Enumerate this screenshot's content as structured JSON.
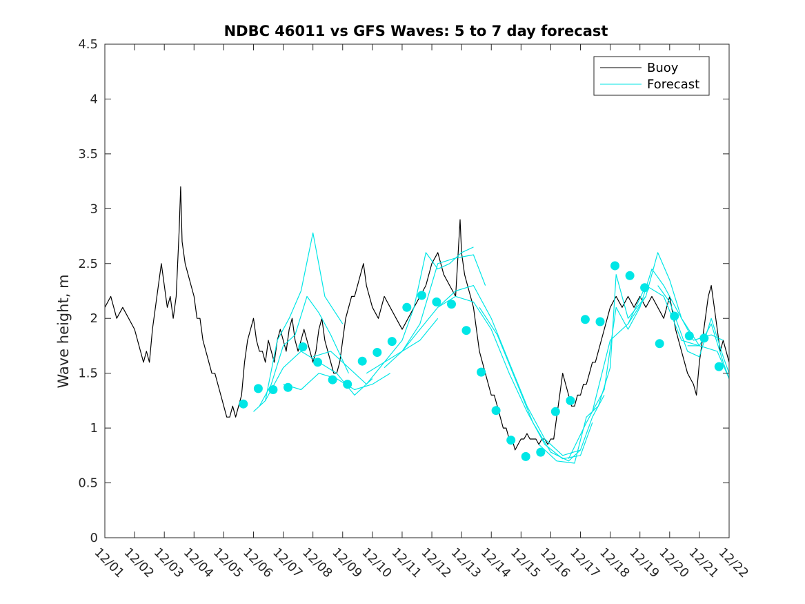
{
  "chart_data": {
    "type": "line",
    "title": "NDBC 46011 vs GFS Waves: 5 to 7 day forecast",
    "xlabel": "",
    "ylabel": "Wave height, m",
    "x_tick_labels": [
      "12/01",
      "12/02",
      "12/03",
      "12/04",
      "12/05",
      "12/06",
      "12/07",
      "12/08",
      "12/09",
      "12/10",
      "12/11",
      "12/12",
      "12/13",
      "12/14",
      "12/15",
      "12/16",
      "12/17",
      "12/18",
      "12/19",
      "12/20",
      "12/21",
      "12/22"
    ],
    "xlim": [
      0,
      21
    ],
    "ylim": [
      0,
      4.5
    ],
    "y_ticks": [
      0,
      0.5,
      1,
      1.5,
      2,
      2.5,
      3,
      3.5,
      4,
      4.5
    ],
    "grid": false,
    "legend_position": "top-right",
    "colors": {
      "buoy": "#000000",
      "forecast": "#00e6e6"
    },
    "series": [
      {
        "name": "Buoy",
        "style": "line",
        "x": [
          0,
          0.2,
          0.4,
          0.6,
          0.8,
          1.0,
          1.1,
          1.2,
          1.3,
          1.4,
          1.5,
          1.6,
          1.7,
          1.8,
          1.9,
          2.0,
          2.1,
          2.2,
          2.3,
          2.4,
          2.5,
          2.55,
          2.6,
          2.7,
          2.8,
          2.9,
          3.0,
          3.1,
          3.2,
          3.3,
          3.4,
          3.5,
          3.6,
          3.7,
          3.8,
          3.9,
          4.0,
          4.1,
          4.2,
          4.3,
          4.4,
          4.5,
          4.6,
          4.7,
          4.8,
          4.9,
          5.0,
          5.1,
          5.2,
          5.3,
          5.4,
          5.5,
          5.6,
          5.7,
          5.8,
          5.9,
          6.0,
          6.1,
          6.2,
          6.3,
          6.4,
          6.5,
          6.6,
          6.7,
          6.8,
          6.9,
          7.0,
          7.1,
          7.2,
          7.3,
          7.4,
          7.5,
          7.6,
          7.7,
          7.8,
          7.9,
          8.0,
          8.1,
          8.2,
          8.3,
          8.4,
          8.5,
          8.6,
          8.7,
          8.8,
          8.9,
          9.0,
          9.2,
          9.4,
          9.6,
          9.8,
          10.0,
          10.2,
          10.4,
          10.6,
          10.8,
          11.0,
          11.2,
          11.4,
          11.6,
          11.8,
          11.95,
          12.0,
          12.1,
          12.2,
          12.3,
          12.4,
          12.5,
          12.6,
          12.7,
          12.8,
          12.9,
          13.0,
          13.1,
          13.2,
          13.3,
          13.4,
          13.5,
          13.6,
          13.7,
          13.8,
          13.9,
          14.0,
          14.1,
          14.2,
          14.3,
          14.4,
          14.5,
          14.6,
          14.7,
          14.8,
          14.9,
          15.0,
          15.1,
          15.2,
          15.3,
          15.4,
          15.5,
          15.6,
          15.7,
          15.8,
          15.9,
          16.0,
          16.1,
          16.2,
          16.3,
          16.4,
          16.5,
          16.6,
          16.7,
          16.8,
          16.9,
          17.0,
          17.2,
          17.4,
          17.6,
          17.8,
          18.0,
          18.2,
          18.4,
          18.6,
          18.8,
          19.0,
          19.2,
          19.4,
          19.6,
          19.8,
          19.9,
          20.0,
          20.1,
          20.2,
          20.3,
          20.4,
          20.5,
          20.6,
          20.7,
          20.8,
          20.9,
          21.0
        ],
        "values": [
          2.1,
          2.2,
          2.0,
          2.1,
          2.0,
          1.9,
          1.8,
          1.7,
          1.6,
          1.7,
          1.6,
          1.9,
          2.1,
          2.3,
          2.5,
          2.3,
          2.1,
          2.2,
          2.0,
          2.2,
          2.8,
          3.2,
          2.7,
          2.5,
          2.4,
          2.3,
          2.2,
          2.0,
          2.0,
          1.8,
          1.7,
          1.6,
          1.5,
          1.5,
          1.4,
          1.3,
          1.2,
          1.1,
          1.1,
          1.2,
          1.1,
          1.2,
          1.3,
          1.6,
          1.8,
          1.9,
          2.0,
          1.8,
          1.7,
          1.7,
          1.6,
          1.8,
          1.7,
          1.6,
          1.8,
          1.9,
          1.8,
          1.7,
          1.9,
          2.0,
          1.8,
          1.7,
          1.8,
          1.9,
          1.8,
          1.7,
          1.6,
          1.7,
          1.9,
          2.0,
          1.8,
          1.7,
          1.6,
          1.5,
          1.5,
          1.6,
          1.8,
          2.0,
          2.1,
          2.2,
          2.2,
          2.3,
          2.4,
          2.5,
          2.3,
          2.2,
          2.1,
          2.0,
          2.2,
          2.1,
          2.0,
          1.9,
          2.0,
          2.1,
          2.2,
          2.3,
          2.5,
          2.6,
          2.4,
          2.3,
          2.2,
          2.9,
          2.6,
          2.4,
          2.3,
          2.2,
          2.1,
          1.9,
          1.7,
          1.6,
          1.5,
          1.4,
          1.3,
          1.3,
          1.2,
          1.1,
          1.0,
          1.0,
          0.9,
          0.9,
          0.8,
          0.85,
          0.9,
          0.9,
          0.95,
          0.9,
          0.9,
          0.9,
          0.85,
          0.9,
          0.9,
          0.85,
          0.9,
          0.9,
          1.1,
          1.3,
          1.5,
          1.4,
          1.3,
          1.2,
          1.2,
          1.3,
          1.3,
          1.4,
          1.4,
          1.5,
          1.6,
          1.6,
          1.7,
          1.8,
          1.9,
          2.0,
          2.1,
          2.2,
          2.1,
          2.2,
          2.1,
          2.2,
          2.1,
          2.2,
          2.1,
          2.0,
          2.2,
          1.9,
          1.7,
          1.5,
          1.4,
          1.3,
          1.6,
          1.8,
          2.0,
          2.2,
          2.3,
          2.1,
          1.9,
          1.7,
          1.8,
          1.7,
          1.6
        ]
      },
      {
        "name": "Forecast",
        "style": "line",
        "x": [
          5.0,
          5.4,
          5.8,
          6.2,
          6.6,
          7.0,
          7.4,
          8.0
        ],
        "values": [
          1.15,
          1.25,
          1.8,
          2.0,
          2.25,
          2.78,
          2.2,
          1.95
        ]
      },
      {
        "name": "Forecast",
        "style": "line",
        "x": [
          5.2,
          5.6,
          6.0,
          6.4,
          6.8,
          7.2,
          7.6,
          8.2
        ],
        "values": [
          1.2,
          1.4,
          1.75,
          1.85,
          2.2,
          2.05,
          1.85,
          1.5
        ]
      },
      {
        "name": "Forecast",
        "style": "line",
        "x": [
          5.4,
          6.0,
          6.6,
          7.2,
          7.8,
          8.4,
          9.0
        ],
        "values": [
          1.25,
          1.55,
          1.7,
          1.6,
          1.5,
          1.3,
          1.45
        ]
      },
      {
        "name": "Forecast",
        "style": "line",
        "x": [
          6.0,
          6.6,
          7.2,
          7.8,
          8.4,
          9.0,
          9.6
        ],
        "values": [
          1.4,
          1.35,
          1.5,
          1.45,
          1.35,
          1.4,
          1.5
        ]
      },
      {
        "name": "Forecast",
        "style": "line",
        "x": [
          7.0,
          7.6,
          8.2,
          8.8,
          9.4,
          10.0,
          10.6,
          11.2
        ],
        "values": [
          1.65,
          1.7,
          1.55,
          1.4,
          1.6,
          1.7,
          1.8,
          2.0
        ]
      },
      {
        "name": "Forecast",
        "style": "line",
        "x": [
          8.8,
          9.4,
          10.0,
          10.4,
          10.8,
          11.2,
          11.6,
          12.0,
          12.4
        ],
        "values": [
          1.5,
          1.6,
          1.8,
          2.1,
          2.6,
          2.45,
          2.5,
          2.6,
          2.65
        ]
      },
      {
        "name": "Forecast",
        "style": "line",
        "x": [
          9.4,
          10.0,
          10.6,
          11.2,
          11.8,
          12.4,
          12.8
        ],
        "values": [
          1.55,
          1.7,
          1.95,
          2.5,
          2.55,
          2.58,
          2.3
        ]
      },
      {
        "name": "Forecast",
        "style": "line",
        "x": [
          10.0,
          10.6,
          11.2,
          11.8,
          12.4,
          13.0,
          13.6,
          14.2,
          14.8,
          15.4,
          16.0
        ],
        "values": [
          1.7,
          1.9,
          2.1,
          2.25,
          2.3,
          2.0,
          1.6,
          1.2,
          0.9,
          0.75,
          0.8
        ]
      },
      {
        "name": "Forecast",
        "style": "line",
        "x": [
          11.2,
          11.8,
          12.4,
          13.0,
          13.6,
          14.2,
          14.8,
          15.4,
          16.0,
          16.4
        ],
        "values": [
          2.1,
          2.2,
          2.15,
          1.9,
          1.5,
          1.15,
          0.85,
          0.72,
          0.75,
          1.05
        ]
      },
      {
        "name": "Forecast",
        "style": "line",
        "x": [
          12.6,
          13.2,
          13.8,
          14.4,
          15.0,
          15.6,
          16.0,
          16.4,
          16.8
        ],
        "values": [
          2.1,
          1.85,
          1.45,
          1.05,
          0.78,
          0.7,
          0.8,
          1.1,
          1.3
        ]
      },
      {
        "name": "Forecast",
        "style": "line",
        "x": [
          14.6,
          15.2,
          15.8,
          16.2,
          16.6,
          17.0,
          17.2,
          17.6,
          18.2
        ],
        "values": [
          0.85,
          0.7,
          0.68,
          1.1,
          1.2,
          1.55,
          2.4,
          2.0,
          2.2
        ]
      },
      {
        "name": "Forecast",
        "style": "line",
        "x": [
          15.6,
          16.2,
          16.8,
          17.2,
          17.6,
          18.0,
          18.4,
          18.8,
          19.4,
          20.0
        ],
        "values": [
          0.72,
          1.05,
          1.35,
          2.1,
          1.9,
          2.1,
          2.45,
          2.3,
          2.0,
          1.75
        ]
      },
      {
        "name": "Forecast",
        "style": "line",
        "x": [
          16.4,
          17.0,
          17.6,
          18.2,
          18.6,
          19.0,
          19.4,
          19.8,
          20.4,
          20.8
        ],
        "values": [
          1.15,
          1.8,
          1.95,
          2.2,
          2.6,
          2.35,
          2.0,
          1.8,
          1.85,
          1.8
        ]
      },
      {
        "name": "Forecast",
        "style": "line",
        "x": [
          17.6,
          18.2,
          18.8,
          19.4,
          20.0,
          20.6,
          21.0
        ],
        "values": [
          1.95,
          2.3,
          2.2,
          1.8,
          1.75,
          1.7,
          1.45
        ]
      },
      {
        "name": "Forecast",
        "style": "line",
        "x": [
          18.6,
          19.0,
          19.6,
          20.0,
          20.4,
          20.8,
          21.0
        ],
        "values": [
          2.3,
          2.15,
          1.7,
          1.65,
          2.0,
          1.65,
          1.5
        ]
      },
      {
        "name": "Forecast",
        "style": "line",
        "x": [
          19.6,
          20.0,
          20.4,
          20.8,
          21.0
        ],
        "values": [
          1.75,
          1.75,
          1.95,
          1.6,
          1.45
        ]
      },
      {
        "name": "Forecast markers",
        "style": "points",
        "x": [
          4.66,
          5.16,
          5.66,
          6.16,
          6.66,
          7.16,
          7.66,
          8.16,
          8.66,
          9.16,
          9.66,
          10.16,
          10.66,
          11.16,
          11.66,
          12.16,
          12.66,
          13.16,
          13.66,
          14.16,
          14.66,
          15.16,
          15.66,
          16.16,
          16.66,
          17.16,
          17.66,
          18.16,
          18.66,
          19.16,
          19.66,
          20.16,
          20.66
        ],
        "values": [
          1.22,
          1.36,
          1.35,
          1.37,
          1.74,
          1.6,
          1.44,
          1.4,
          1.61,
          1.69,
          1.79,
          2.1,
          2.21,
          2.15,
          2.13,
          1.89,
          1.51,
          1.16,
          0.89,
          0.74,
          0.78,
          1.15,
          1.25,
          1.99,
          1.97,
          2.48,
          2.39,
          2.28,
          1.77,
          2.02,
          1.84,
          1.82,
          1.56
        ]
      }
    ],
    "legend": [
      {
        "label": "Buoy",
        "color": "#000000"
      },
      {
        "label": "Forecast",
        "color": "#00e6e6"
      }
    ]
  }
}
